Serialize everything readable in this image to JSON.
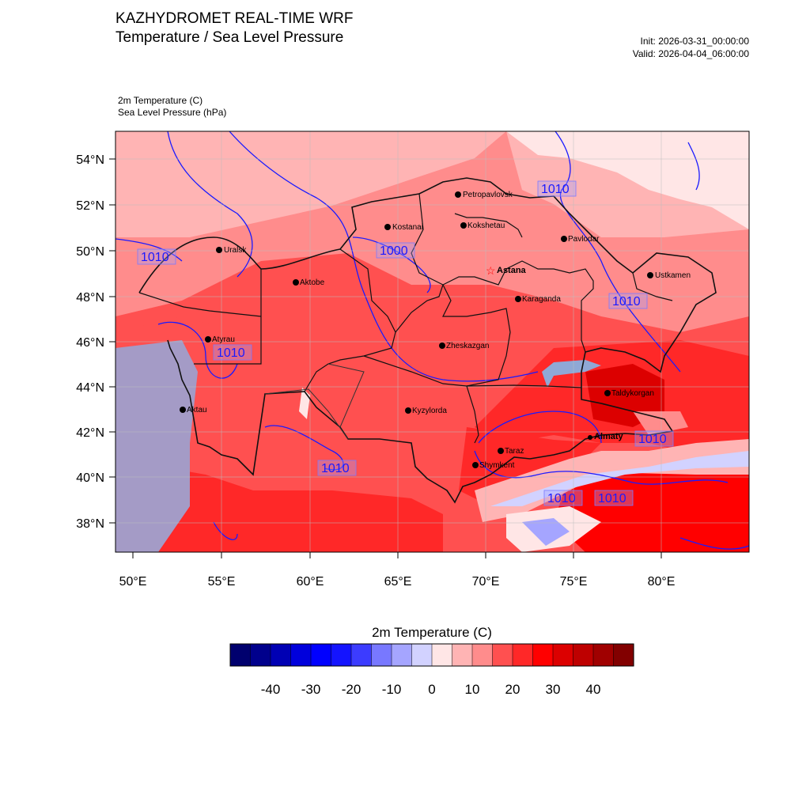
{
  "header": {
    "title": "KAZHYDROMET REAL-TIME WRF",
    "subtitle": "Temperature / Sea Level Pressure",
    "init": "Init: 2026-03-31_00:00:00",
    "valid": "Valid: 2026-04-04_06:00:00"
  },
  "fields": {
    "temperature": "2m Temperature   (C)",
    "pressure": "Sea Level Pressure   (hPa)"
  },
  "map": {
    "lon_ticks": [
      "50°E",
      "55°E",
      "60°E",
      "65°E",
      "70°E",
      "75°E",
      "80°E"
    ],
    "lat_ticks": [
      "54°N",
      "52°N",
      "50°N",
      "48°N",
      "46°N",
      "44°N",
      "42°N",
      "40°N",
      "38°N"
    ],
    "cities": [
      {
        "name": "Petropavlovsk",
        "bold": false,
        "capital": false
      },
      {
        "name": "Kostanai",
        "bold": false,
        "capital": false
      },
      {
        "name": "Kokshetau",
        "bold": false,
        "capital": false
      },
      {
        "name": "Pavlodar",
        "bold": false,
        "capital": false
      },
      {
        "name": "Uralsk",
        "bold": false,
        "capital": false
      },
      {
        "name": "Astana",
        "bold": true,
        "capital": true
      },
      {
        "name": "Ustkamen",
        "bold": false,
        "capital": false
      },
      {
        "name": "Aktobe",
        "bold": false,
        "capital": false
      },
      {
        "name": "Karaganda",
        "bold": false,
        "capital": false
      },
      {
        "name": "Atyrau",
        "bold": false,
        "capital": false
      },
      {
        "name": "Zheskazgan",
        "bold": false,
        "capital": false
      },
      {
        "name": "Taldykorgan",
        "bold": false,
        "capital": false
      },
      {
        "name": "Aktau",
        "bold": false,
        "capital": false
      },
      {
        "name": "Kyzylorda",
        "bold": false,
        "capital": false
      },
      {
        "name": "Almaty",
        "bold": true,
        "capital": false
      },
      {
        "name": "Taraz",
        "bold": false,
        "capital": false
      },
      {
        "name": "Shymkent",
        "bold": false,
        "capital": false
      }
    ],
    "isobar_labels": [
      "1010",
      "1010",
      "1000",
      "1010",
      "1010",
      "1010",
      "1010",
      "1010",
      "1010"
    ],
    "colors": {
      "isobar": "#1a1aff",
      "border": "#111111",
      "sea": "#a49bc6",
      "lake": "#8fa8d6"
    }
  },
  "colorbar": {
    "title": "2m Temperature  (C)",
    "labels": [
      "-40",
      "-30",
      "-20",
      "-10",
      "0",
      "10",
      "20",
      "30",
      "40"
    ],
    "colors": [
      "#00006e",
      "#00008c",
      "#0000b4",
      "#0000dc",
      "#0000ff",
      "#1414ff",
      "#3c3cff",
      "#7878ff",
      "#a5a5ff",
      "#d2d2ff",
      "#ffe6e6",
      "#ffb4b4",
      "#ff8c8c",
      "#ff5050",
      "#ff2828",
      "#ff0000",
      "#dc0000",
      "#be0000",
      "#a00000",
      "#820000"
    ]
  }
}
